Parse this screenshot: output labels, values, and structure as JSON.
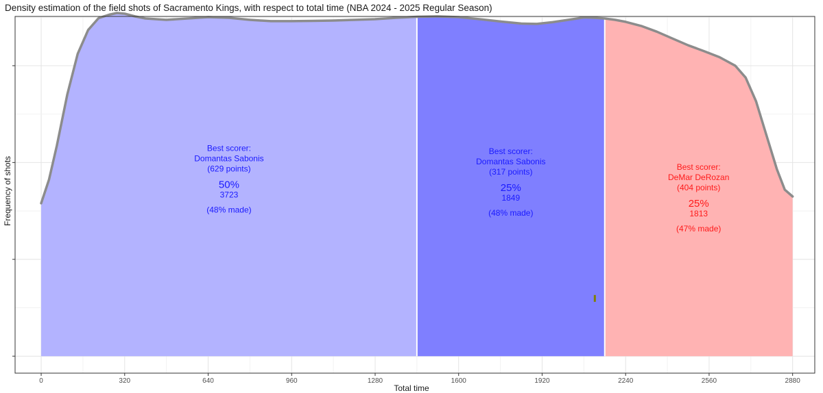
{
  "chart_data": {
    "type": "area",
    "title": "Density estimation of the field shots of Sacramento Kings, with respect to total time (NBA 2024 - 2025 Regular Season)",
    "xlabel": "Total time",
    "ylabel": "Frequency of shots",
    "xlim": [
      -100,
      2965
    ],
    "ylim": [
      -0.05,
      1.0
    ],
    "x_ticks": [
      0,
      320,
      640,
      960,
      1280,
      1600,
      1920,
      2240,
      2560,
      2880
    ],
    "x_tick_labels": [
      "0",
      "320",
      "640",
      "960",
      "1280",
      "1600",
      "1920",
      "2240",
      "2560",
      "2880"
    ],
    "y_ticks": [
      0,
      0.285,
      0.57,
      0.855
    ],
    "grid": true,
    "density_curve": {
      "x": [
        0,
        30,
        60,
        100,
        140,
        180,
        220,
        260,
        290,
        320,
        360,
        400,
        480,
        560,
        640,
        720,
        800,
        880,
        960,
        1040,
        1120,
        1200,
        1280,
        1360,
        1440,
        1520,
        1600,
        1680,
        1760,
        1840,
        1900,
        1960,
        2020,
        2080,
        2120,
        2160,
        2200,
        2240,
        2300,
        2360,
        2420,
        2480,
        2540,
        2600,
        2660,
        2700,
        2740,
        2780,
        2820,
        2850,
        2880
      ],
      "y": [
        0.45,
        0.52,
        0.62,
        0.77,
        0.89,
        0.96,
        0.995,
        1.005,
        1.01,
        1.008,
        1.0,
        0.994,
        0.99,
        0.994,
        0.998,
        0.996,
        0.99,
        0.986,
        0.986,
        0.987,
        0.988,
        0.99,
        0.992,
        0.996,
        0.999,
        1.0,
        0.998,
        0.992,
        0.985,
        0.979,
        0.978,
        0.983,
        0.99,
        0.997,
        0.996,
        0.994,
        0.99,
        0.984,
        0.972,
        0.955,
        0.935,
        0.915,
        0.898,
        0.88,
        0.855,
        0.82,
        0.75,
        0.65,
        0.55,
        0.49,
        0.47
      ]
    },
    "regions": [
      {
        "x_start": 0,
        "x_end": 1440,
        "color": "#b3b3ff",
        "best_scorer_label": "Best scorer:",
        "player": "Domantas Sabonis",
        "points": "(629 points)",
        "percent": "50%",
        "shots": "3723",
        "made": "(48% made)",
        "text_color": "#1a1aff"
      },
      {
        "x_start": 1440,
        "x_end": 2160,
        "color": "#7f7fff",
        "best_scorer_label": "Best scorer:",
        "player": "Domantas Sabonis",
        "points": "(317 points)",
        "percent": "25%",
        "shots": "1849",
        "made": "(48% made)",
        "text_color": "#1a1aff"
      },
      {
        "x_start": 2160,
        "x_end": 2880,
        "color": "#ffb3b3",
        "best_scorer_label": "Best scorer:",
        "player": "DeMar DeRozan",
        "points": "(404 points)",
        "percent": "25%",
        "shots": "1813",
        "made": "(47% made)",
        "text_color": "#ff1a1a"
      }
    ],
    "marker": {
      "x": 2122,
      "y": 0.17,
      "color": "#808000"
    }
  }
}
